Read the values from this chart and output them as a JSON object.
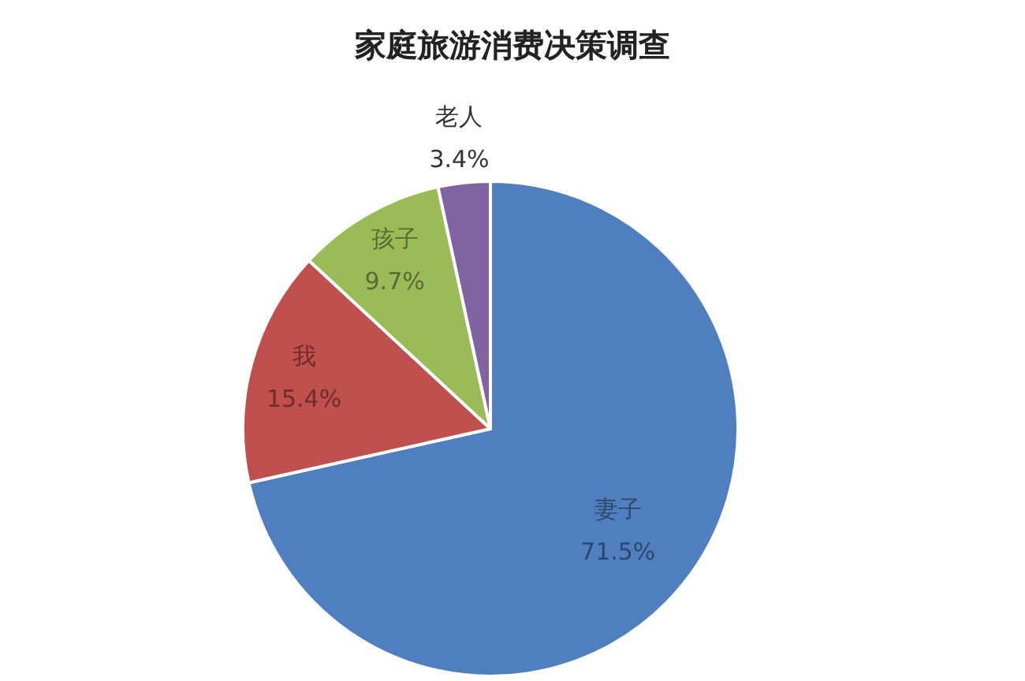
{
  "chart_data": {
    "type": "pie",
    "title": "家庭旅游消费决策调查",
    "categories": [
      "妻子",
      "我",
      "孩子",
      "老人"
    ],
    "values": [
      71.5,
      15.4,
      9.7,
      3.4
    ],
    "value_labels": [
      "71.5%",
      "15.4%",
      "9.7%",
      "3.4%"
    ],
    "colors": [
      "#4f7fbf",
      "#c0504d",
      "#9bbb59",
      "#8064a2"
    ]
  }
}
